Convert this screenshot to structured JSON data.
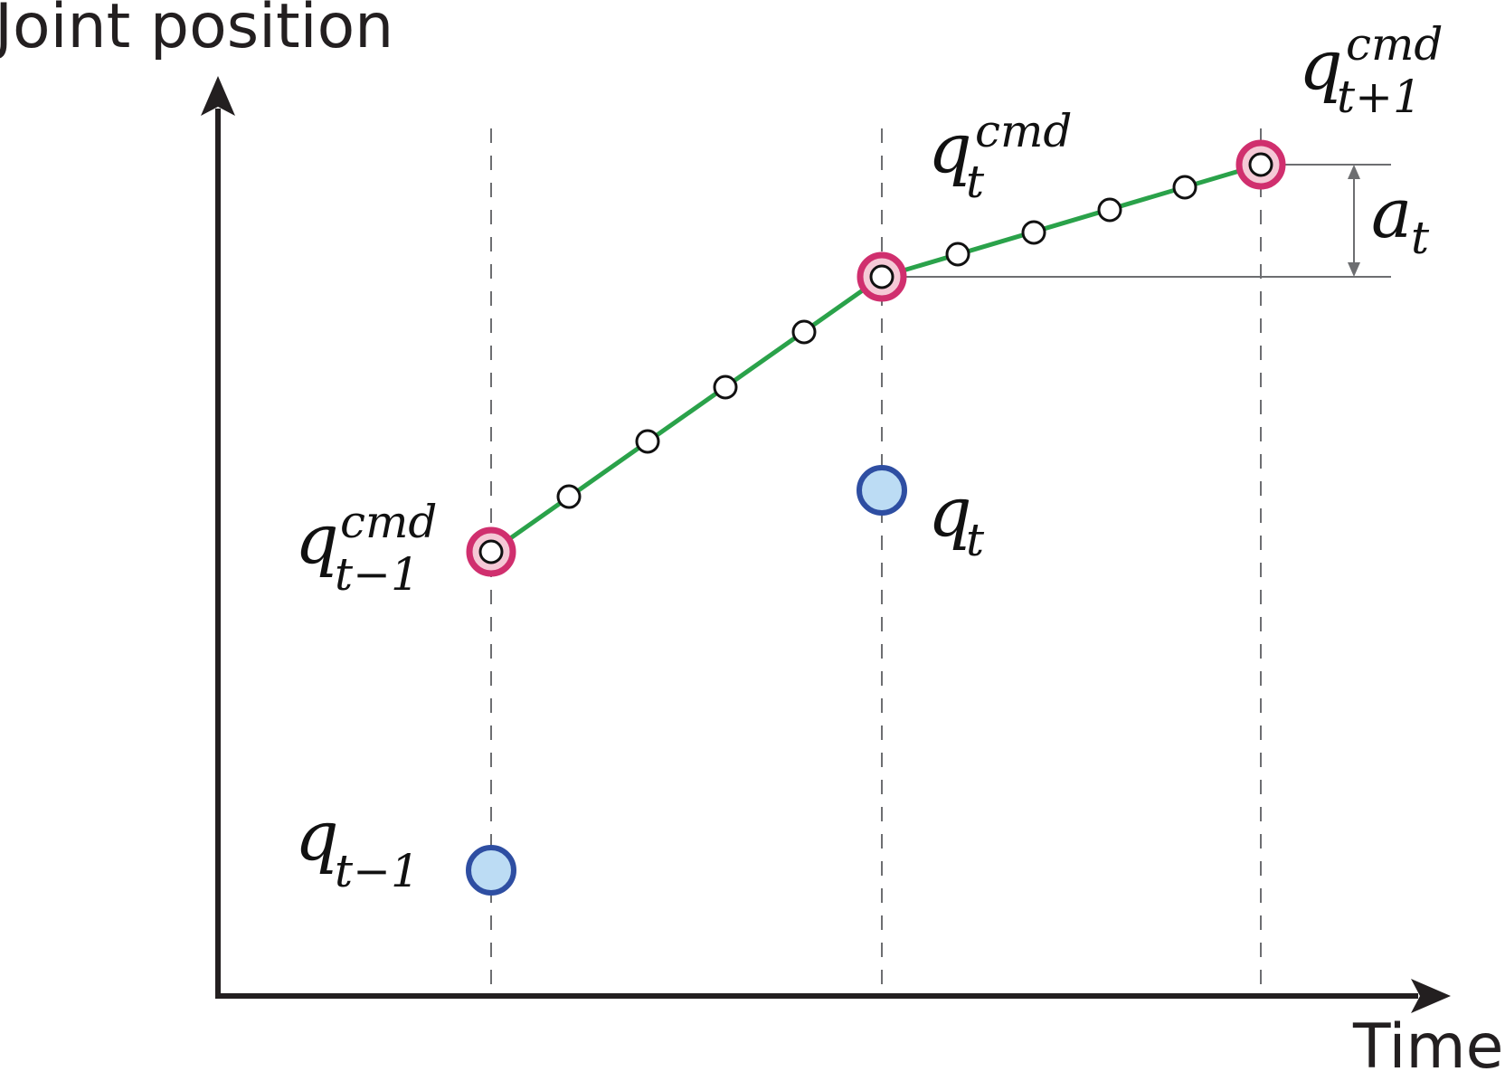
{
  "axes": {
    "y_title": "Joint position",
    "x_title": "Time"
  },
  "labels": {
    "q_cmd_prev": {
      "base": "q",
      "sup": "cmd",
      "sub": "t−1"
    },
    "q_cmd_curr": {
      "base": "q",
      "sup": "cmd",
      "sub": "t"
    },
    "q_cmd_next": {
      "base": "q",
      "sup": "cmd",
      "sub": "t+1"
    },
    "q_prev": {
      "base": "q",
      "sub": "t−1"
    },
    "q_curr": {
      "base": "q",
      "sub": "t"
    },
    "a_t": {
      "base": "a",
      "sub": "t"
    }
  },
  "colors": {
    "axis": "#231f20",
    "guide": "#6d6e71",
    "trajectory": "#2aa24a",
    "command_ring": "#d02f6e",
    "command_fill": "#f5c9d6",
    "measured_stroke": "#2e4ea2",
    "measured_fill": "#bcdcf4",
    "interp_point": "#ffffff"
  }
}
